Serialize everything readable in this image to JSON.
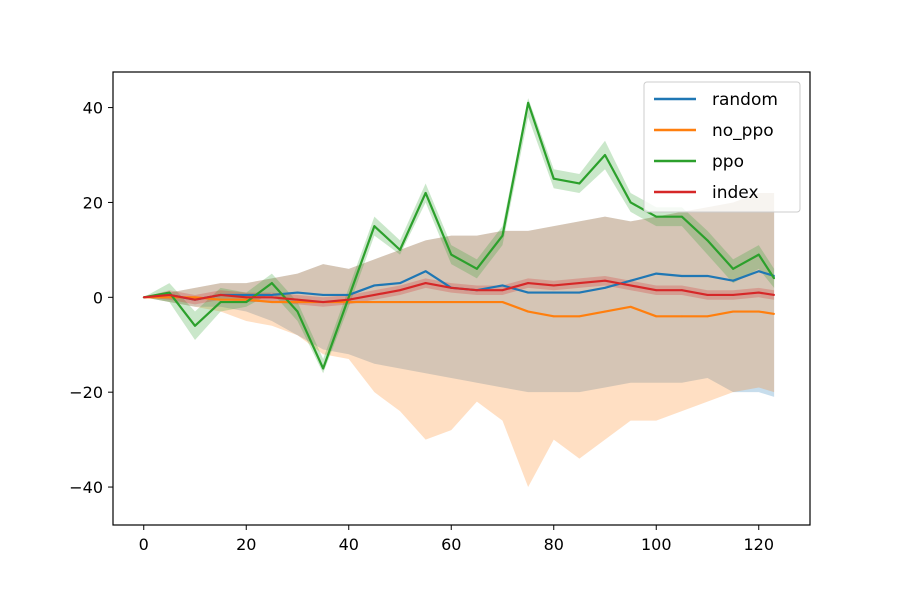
{
  "chart_data": {
    "type": "line",
    "x": [
      0,
      5,
      10,
      15,
      20,
      25,
      30,
      35,
      40,
      45,
      50,
      55,
      60,
      65,
      70,
      75,
      80,
      85,
      90,
      95,
      100,
      105,
      110,
      115,
      120,
      123
    ],
    "xlim": [
      -6,
      130
    ],
    "ylim": [
      -48,
      47.5
    ],
    "xticks": [
      0,
      20,
      40,
      60,
      80,
      100,
      120
    ],
    "yticks": [
      -40,
      -20,
      0,
      20,
      40
    ],
    "xtick_labels": [
      "0",
      "20",
      "40",
      "60",
      "80",
      "100",
      "120"
    ],
    "ytick_labels": [
      "−40",
      "−20",
      "0",
      "20",
      "40"
    ],
    "legend_position": "top-right",
    "series": [
      {
        "name": "random",
        "color": "#1f77b4",
        "values": [
          0,
          0.5,
          -0.5,
          0.5,
          0.5,
          0.5,
          1,
          0.5,
          0.5,
          2.5,
          3,
          5.5,
          2,
          1.5,
          2.5,
          1,
          1,
          1,
          2,
          3.5,
          5,
          4.5,
          4.5,
          3.5,
          5.5,
          4.5
        ],
        "lower": [
          0,
          -1,
          -2,
          -2,
          -3,
          -5,
          -8,
          -11,
          -12,
          -14,
          -15,
          -16,
          -17,
          -18,
          -19,
          -20,
          -20,
          -20,
          -19,
          -18,
          -18,
          -18,
          -17,
          -20,
          -20,
          -21
        ],
        "upper": [
          0,
          1,
          2,
          3,
          3,
          4,
          5,
          7,
          6,
          8,
          10,
          12,
          13,
          13,
          14,
          14,
          15,
          16,
          17,
          16,
          17,
          18,
          19,
          20,
          22,
          22
        ]
      },
      {
        "name": "no_ppo",
        "color": "#ff7f0e",
        "values": [
          0,
          0,
          0,
          -0.5,
          -0.5,
          -1,
          -1,
          -1,
          -1,
          -1,
          -1,
          -1,
          -1,
          -1,
          -1,
          -3,
          -4,
          -4,
          -3,
          -2,
          -4,
          -4,
          -4,
          -3,
          -3,
          -3.5
        ],
        "lower": [
          0,
          -1,
          -2,
          -3,
          -5,
          -6,
          -8,
          -12,
          -13,
          -20,
          -24,
          -30,
          -28,
          -22,
          -26,
          -40,
          -30,
          -34,
          -30,
          -26,
          -26,
          -24,
          -22,
          -20,
          -19,
          -20
        ],
        "upper": [
          0,
          1,
          2,
          3,
          3,
          4,
          5,
          7,
          6,
          8,
          10,
          12,
          13,
          13,
          14,
          14,
          15,
          16,
          17,
          16,
          17,
          18,
          19,
          20,
          22,
          22
        ]
      },
      {
        "name": "ppo",
        "color": "#2ca02c",
        "values": [
          0,
          1,
          -6,
          -1,
          -1,
          3,
          -3,
          -15,
          0,
          15,
          10,
          22,
          9,
          6,
          13,
          41,
          25,
          24,
          30,
          20,
          17,
          17,
          12,
          6,
          9,
          4
        ],
        "lower": [
          0,
          -1,
          -9,
          -3,
          -2,
          1,
          -5,
          -16,
          -2,
          13,
          9,
          20,
          7,
          4,
          11,
          38,
          23,
          22,
          27,
          18,
          15,
          15,
          9,
          3,
          6,
          2
        ],
        "upper": [
          0,
          3,
          -3,
          2,
          1,
          5,
          -1,
          -13,
          2,
          17,
          12,
          24,
          11,
          8,
          15,
          42,
          27,
          26,
          33,
          22,
          19,
          19,
          14,
          8,
          11,
          6
        ]
      },
      {
        "name": "index",
        "color": "#d62728",
        "values": [
          0,
          0.5,
          -0.5,
          0.5,
          0,
          0,
          -0.5,
          -1,
          -0.5,
          0.5,
          1.5,
          3,
          2,
          1.5,
          1.5,
          3,
          2.5,
          3,
          3.5,
          2.5,
          1.5,
          1.5,
          0.5,
          0.5,
          1,
          0.5
        ],
        "lower": [
          0,
          -0.5,
          -1.5,
          -0.5,
          -1,
          -1,
          -1.5,
          -2,
          -1.5,
          -0.5,
          0.5,
          2,
          1,
          0.5,
          0.5,
          2,
          1.5,
          2,
          2.5,
          1.5,
          0.5,
          0.5,
          -0.5,
          -0.5,
          0,
          -0.5
        ],
        "upper": [
          0,
          1.5,
          0.5,
          1.5,
          1,
          1,
          0.5,
          0,
          0.5,
          1.5,
          2.5,
          4,
          3,
          2.5,
          2.5,
          4,
          3.5,
          4,
          4.5,
          3.5,
          2.5,
          2.5,
          1.5,
          1.5,
          2,
          1.5
        ]
      }
    ]
  }
}
